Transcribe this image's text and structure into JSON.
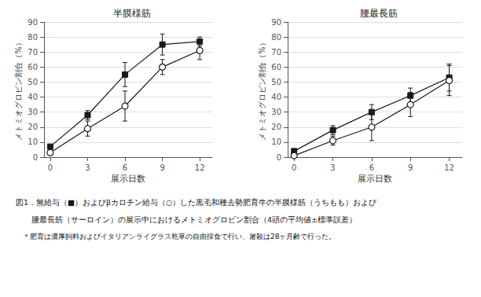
{
  "chart_data": [
    {
      "type": "line",
      "title": "半膜様筋",
      "xlabel": "展示日数",
      "ylabel": "メトミオグロビン割合（%）",
      "x": [
        0,
        3,
        6,
        9,
        12
      ],
      "series": [
        {
          "values": [
            7,
            28,
            55,
            75,
            77
          ],
          "yerr": [
            1,
            3,
            8,
            7,
            3
          ],
          "color": "#1a1a1a",
          "marker": "square"
        },
        {
          "values": [
            3,
            19,
            34,
            60,
            71
          ],
          "yerr": [
            1,
            5,
            10,
            5,
            6
          ],
          "color": "#1a1a1a",
          "marker": "open_circle"
        }
      ],
      "xlim": [
        -0.5,
        13.0
      ],
      "xticks": [
        0,
        3,
        6,
        9,
        12
      ],
      "ylim": [
        0,
        90
      ],
      "yticks": [
        0,
        10,
        20,
        30,
        40,
        50,
        60,
        70,
        80,
        90
      ],
      "grid": "y"
    },
    {
      "type": "line",
      "title": "腰最長筋",
      "xlabel": "展示日数",
      "ylabel": "メトミオグロビン割合（%）",
      "x": [
        0,
        3,
        6,
        9,
        12
      ],
      "series": [
        {
          "values": [
            4,
            18,
            30,
            41,
            53
          ],
          "yerr": [
            1,
            3,
            5,
            5,
            9
          ],
          "color": "#1a1a1a",
          "marker": "square"
        },
        {
          "values": [
            1,
            11,
            20,
            35,
            51
          ],
          "yerr": [
            1,
            3,
            9,
            8,
            10
          ],
          "color": "#1a1a1a",
          "marker": "open_circle"
        }
      ],
      "xlim": [
        -0.5,
        13.0
      ],
      "xticks": [
        0,
        3,
        6,
        9,
        12
      ],
      "ylim": [
        0,
        90
      ],
      "yticks": [
        0,
        10,
        20,
        30,
        40,
        50,
        60,
        70,
        80,
        90
      ],
      "grid": "y"
    }
  ],
  "annotations": [
    "図1．無給与（■）およびβカロチン給与（○）した黒毛和種去勢肥育牛の半膜様筋（うちもも）および",
    "　　腰最長筋（サーロイン）の展示中におけるメトミオグロビン割合（4頭の平均値±標準誤差）",
    "　＊肥育は濃厚飼料およびイタリアンライグラス乾草の自由採食で行い、屠殺は28ヶ月齢で行った。"
  ]
}
